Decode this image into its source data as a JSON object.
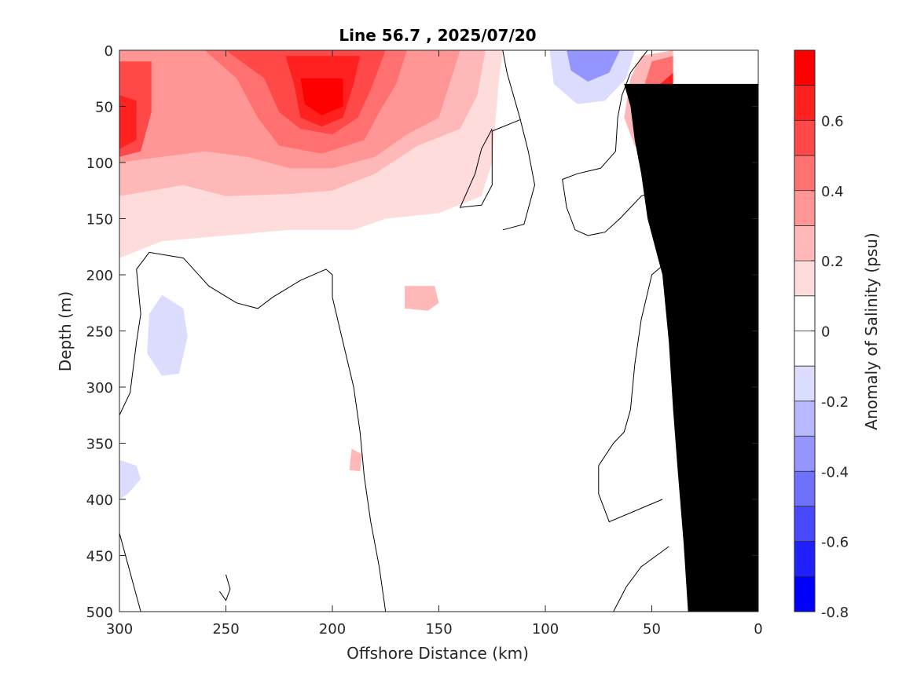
{
  "chart_data": {
    "type": "heatmap",
    "subtype": "filled-contour",
    "title": "Line 56.7 , 2025/07/20",
    "xlabel": "Offshore Distance (km)",
    "ylabel": "Depth (m)",
    "xlim": [
      300,
      0
    ],
    "ylim": [
      0,
      500
    ],
    "x_reversed": true,
    "y_reversed": true,
    "x_ticks": [
      300,
      250,
      200,
      150,
      100,
      50,
      0
    ],
    "y_ticks": [
      0,
      50,
      100,
      150,
      200,
      250,
      300,
      350,
      400,
      450,
      500
    ],
    "colorbar": {
      "label": "Anomaly of Salinity (psu)",
      "range": [
        -0.8,
        0.8
      ],
      "levels": [
        -0.8,
        -0.7,
        -0.6,
        -0.5,
        -0.4,
        -0.3,
        -0.2,
        -0.1,
        0,
        0.1,
        0.2,
        0.3,
        0.4,
        0.5,
        0.6,
        0.7,
        0.8
      ],
      "tick_values": [
        -0.8,
        -0.6,
        -0.4,
        -0.2,
        0,
        0.2,
        0.4,
        0.6
      ],
      "tick_labels": [
        "-0.8",
        "-0.6",
        "-0.4",
        "-0.2",
        "0",
        "0.2",
        "0.4",
        "0.6"
      ],
      "colors": [
        "#0000ff",
        "#2020ff",
        "#4848ff",
        "#7070ff",
        "#9595ff",
        "#b8b8ff",
        "#dcdcff",
        "#ffffff",
        "#ffffff",
        "#ffdcdc",
        "#ffb8b8",
        "#ff9595",
        "#ff7070",
        "#ff4848",
        "#ff2020",
        "#ff0000"
      ]
    },
    "regions": [
      {
        "name": "surface positive anomaly",
        "value": 0.1,
        "points": [
          [
            300,
            0
          ],
          [
            120,
            0
          ],
          [
            122,
            30
          ],
          [
            125,
            100
          ],
          [
            130,
            130
          ],
          [
            150,
            145
          ],
          [
            175,
            150
          ],
          [
            190,
            160
          ],
          [
            220,
            160
          ],
          [
            250,
            165
          ],
          [
            280,
            170
          ],
          [
            300,
            185
          ]
        ]
      },
      {
        "name": "surface positive anomaly",
        "value": 0.2,
        "points": [
          [
            300,
            0
          ],
          [
            128,
            0
          ],
          [
            132,
            40
          ],
          [
            140,
            70
          ],
          [
            160,
            85
          ],
          [
            180,
            110
          ],
          [
            200,
            125
          ],
          [
            220,
            128
          ],
          [
            250,
            130
          ],
          [
            270,
            120
          ],
          [
            285,
            125
          ],
          [
            300,
            130
          ]
        ]
      },
      {
        "name": "surface positive anomaly",
        "value": 0.3,
        "points": [
          [
            300,
            0
          ],
          [
            140,
            0
          ],
          [
            145,
            30
          ],
          [
            150,
            60
          ],
          [
            165,
            75
          ],
          [
            180,
            95
          ],
          [
            200,
            105
          ],
          [
            220,
            105
          ],
          [
            240,
            95
          ],
          [
            260,
            90
          ],
          [
            280,
            95
          ],
          [
            300,
            100
          ]
        ]
      },
      {
        "name": "surface positive anomaly",
        "value": 0.4,
        "points": [
          [
            260,
            0
          ],
          [
            165,
            0
          ],
          [
            170,
            30
          ],
          [
            178,
            55
          ],
          [
            185,
            80
          ],
          [
            205,
            92
          ],
          [
            225,
            85
          ],
          [
            235,
            60
          ],
          [
            245,
            25
          ]
        ]
      },
      {
        "name": "surface positive anomaly",
        "value": 0.5,
        "points": [
          [
            250,
            0
          ],
          [
            175,
            0
          ],
          [
            182,
            35
          ],
          [
            188,
            60
          ],
          [
            200,
            75
          ],
          [
            215,
            70
          ],
          [
            225,
            55
          ],
          [
            232,
            25
          ]
        ]
      },
      {
        "name": "surface positive anomaly",
        "value": 0.6,
        "points": [
          [
            222,
            5
          ],
          [
            187,
            5
          ],
          [
            190,
            30
          ],
          [
            195,
            60
          ],
          [
            205,
            68
          ],
          [
            215,
            60
          ],
          [
            218,
            30
          ]
        ]
      },
      {
        "name": "surface positive anomaly",
        "value": 0.7,
        "points": [
          [
            215,
            25
          ],
          [
            195,
            25
          ],
          [
            195,
            50
          ],
          [
            205,
            58
          ],
          [
            213,
            48
          ]
        ]
      },
      {
        "name": "west edge positive anomaly",
        "value": 0.5,
        "points": [
          [
            300,
            10
          ],
          [
            285,
            10
          ],
          [
            285,
            55
          ],
          [
            290,
            90
          ],
          [
            300,
            95
          ]
        ]
      },
      {
        "name": "west edge positive anomaly",
        "value": 0.6,
        "points": [
          [
            300,
            40
          ],
          [
            292,
            45
          ],
          [
            292,
            80
          ],
          [
            300,
            88
          ]
        ]
      },
      {
        "name": "nearshore positive anomaly",
        "value": 0.2,
        "points": [
          [
            40,
            0
          ],
          [
            55,
            5
          ],
          [
            60,
            25
          ],
          [
            63,
            60
          ],
          [
            58,
            85
          ],
          [
            48,
            100
          ],
          [
            40,
            105
          ]
        ]
      },
      {
        "name": "nearshore positive anomaly",
        "value": 0.4,
        "points": [
          [
            40,
            5
          ],
          [
            50,
            10
          ],
          [
            55,
            40
          ],
          [
            52,
            70
          ],
          [
            45,
            85
          ],
          [
            40,
            85
          ]
        ]
      },
      {
        "name": "nearshore positive anomaly",
        "value": 0.6,
        "points": [
          [
            40,
            20
          ],
          [
            46,
            30
          ],
          [
            48,
            50
          ],
          [
            44,
            65
          ],
          [
            40,
            65
          ]
        ]
      },
      {
        "name": "nearshore negative anomaly",
        "value": -0.2,
        "points": [
          [
            98,
            0
          ],
          [
            58,
            0
          ],
          [
            62,
            25
          ],
          [
            72,
            45
          ],
          [
            85,
            48
          ],
          [
            96,
            30
          ]
        ]
      },
      {
        "name": "nearshore negative anomaly",
        "value": -0.4,
        "points": [
          [
            90,
            0
          ],
          [
            65,
            0
          ],
          [
            70,
            20
          ],
          [
            80,
            28
          ],
          [
            88,
            18
          ]
        ]
      },
      {
        "name": "subsurface negative anomaly",
        "value": -0.2,
        "points": [
          [
            280,
            218
          ],
          [
            270,
            230
          ],
          [
            268,
            255
          ],
          [
            272,
            288
          ],
          [
            280,
            290
          ],
          [
            287,
            270
          ],
          [
            286,
            235
          ]
        ]
      },
      {
        "name": "subsurface negative anomaly",
        "value": -0.2,
        "points": [
          [
            300,
            365
          ],
          [
            292,
            370
          ],
          [
            290,
            382
          ],
          [
            296,
            395
          ],
          [
            300,
            400
          ]
        ]
      },
      {
        "name": "subsurface positive anomaly",
        "value": 0.2,
        "points": [
          [
            166,
            210
          ],
          [
            152,
            210
          ],
          [
            150,
            225
          ],
          [
            155,
            232
          ],
          [
            166,
            230
          ]
        ]
      },
      {
        "name": "subsurface positive anomaly",
        "value": 0.2,
        "points": [
          [
            191,
            355
          ],
          [
            186,
            360
          ],
          [
            187,
            375
          ],
          [
            192,
            374
          ]
        ]
      }
    ],
    "zero_contours": [
      [
        [
          120,
          0
        ],
        [
          118,
          20
        ],
        [
          112,
          60
        ],
        [
          108,
          90
        ],
        [
          105,
          120
        ],
        [
          110,
          155
        ],
        [
          120,
          160
        ]
      ],
      [
        [
          112,
          62
        ],
        [
          125,
          72
        ],
        [
          125,
          120
        ],
        [
          130,
          138
        ],
        [
          140,
          140
        ],
        [
          133,
          110
        ],
        [
          130,
          88
        ],
        [
          125,
          70
        ]
      ],
      [
        [
          52,
          0
        ],
        [
          60,
          20
        ],
        [
          64,
          40
        ],
        [
          66,
          60
        ],
        [
          67,
          90
        ],
        [
          74,
          105
        ],
        [
          85,
          110
        ],
        [
          92,
          115
        ],
        [
          90,
          140
        ],
        [
          88,
          150
        ],
        [
          86,
          160
        ],
        [
          80,
          165
        ],
        [
          72,
          162
        ],
        [
          65,
          150
        ],
        [
          55,
          130
        ],
        [
          42,
          120
        ]
      ],
      [
        [
          300,
          325
        ],
        [
          295,
          305
        ],
        [
          292,
          260
        ],
        [
          290,
          235
        ],
        [
          292,
          195
        ],
        [
          286,
          180
        ],
        [
          270,
          185
        ],
        [
          258,
          210
        ],
        [
          245,
          225
        ],
        [
          235,
          230
        ],
        [
          228,
          220
        ],
        [
          215,
          205
        ],
        [
          203,
          195
        ],
        [
          200,
          200
        ],
        [
          200,
          220
        ],
        [
          195,
          260
        ],
        [
          190,
          300
        ],
        [
          187,
          340
        ],
        [
          185,
          380
        ],
        [
          182,
          420
        ],
        [
          178,
          460
        ],
        [
          175,
          500
        ]
      ],
      [
        [
          300,
          430
        ],
        [
          290,
          500
        ]
      ],
      [
        [
          250,
          467
        ],
        [
          248,
          480
        ],
        [
          250,
          490
        ],
        [
          253,
          482
        ]
      ],
      [
        [
          42,
          187
        ],
        [
          50,
          200
        ],
        [
          55,
          240
        ],
        [
          58,
          280
        ],
        [
          60,
          320
        ],
        [
          63,
          340
        ],
        [
          68,
          350
        ],
        [
          75,
          370
        ],
        [
          75,
          395
        ],
        [
          70,
          420
        ],
        [
          45,
          400
        ]
      ],
      [
        [
          42,
          442
        ],
        [
          55,
          460
        ],
        [
          62,
          478
        ],
        [
          68,
          500
        ]
      ]
    ],
    "topography": {
      "name": "land mask",
      "color": "#000000",
      "points": [
        [
          0,
          30
        ],
        [
          0,
          500
        ],
        [
          33,
          500
        ],
        [
          35,
          440
        ],
        [
          38,
          370
        ],
        [
          40,
          320
        ],
        [
          42,
          260
        ],
        [
          45,
          200
        ],
        [
          52,
          150
        ],
        [
          55,
          110
        ],
        [
          58,
          80
        ],
        [
          60,
          50
        ],
        [
          63,
          30
        ]
      ]
    }
  }
}
